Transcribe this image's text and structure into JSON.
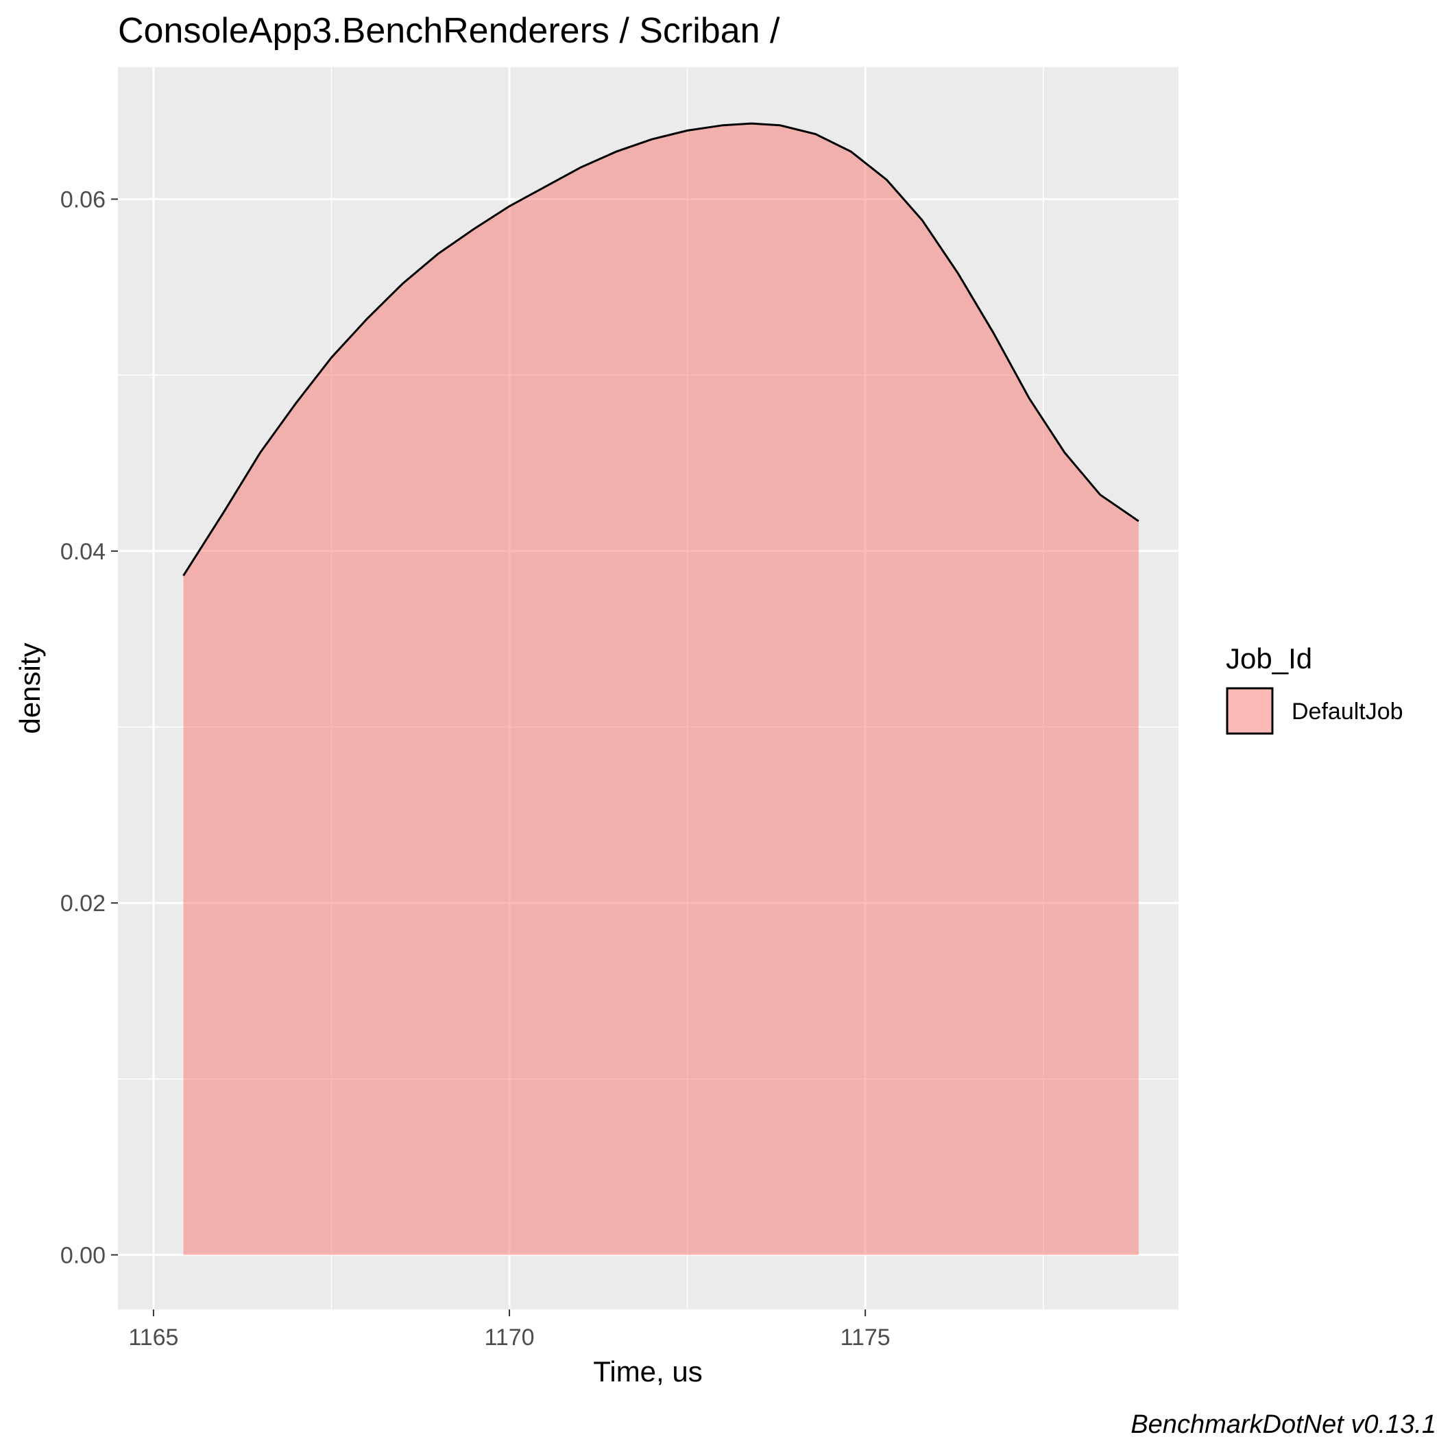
{
  "chart_data": {
    "type": "area",
    "title": "ConsoleApp3.BenchRenderers / Scriban /",
    "xlabel": "Time, us",
    "ylabel": "density",
    "caption": "BenchmarkDotNet v0.13.1",
    "xlim": [
      1164.5,
      1179.4
    ],
    "ylim": [
      -0.0031,
      0.0675
    ],
    "x_ticks": [
      1165,
      1170,
      1175
    ],
    "x_tick_labels": [
      "1165",
      "1170",
      "1175"
    ],
    "x_minor_ticks": [
      1167.5,
      1172.5,
      1177.5
    ],
    "y_ticks": [
      0.0,
      0.02,
      0.04,
      0.06
    ],
    "y_tick_labels": [
      "0.00",
      "0.02",
      "0.04",
      "0.06"
    ],
    "y_minor_ticks": [
      0.01,
      0.03,
      0.05
    ],
    "grid": true,
    "panel_background": "#ebebeb",
    "legend": {
      "title": "Job_Id",
      "position": "right",
      "entries": [
        {
          "label": "DefaultJob",
          "color": "#f8766d"
        }
      ]
    },
    "series": [
      {
        "name": "DefaultJob",
        "fill": "#f8766d",
        "fill_opacity": 0.5,
        "stroke": "#000000",
        "x": [
          1165.42,
          1166.0,
          1166.5,
          1167.0,
          1167.5,
          1168.0,
          1168.5,
          1169.0,
          1169.5,
          1170.0,
          1170.5,
          1171.0,
          1171.5,
          1172.0,
          1172.5,
          1173.0,
          1173.4,
          1173.8,
          1174.3,
          1174.8,
          1175.3,
          1175.8,
          1176.3,
          1176.8,
          1177.3,
          1177.8,
          1178.3,
          1178.84
        ],
        "y": [
          0.0386,
          0.0423,
          0.0456,
          0.0484,
          0.051,
          0.0532,
          0.0552,
          0.0569,
          0.0583,
          0.0596,
          0.0607,
          0.0618,
          0.0627,
          0.0634,
          0.0639,
          0.0642,
          0.0643,
          0.0642,
          0.0637,
          0.0627,
          0.0611,
          0.0588,
          0.0558,
          0.0524,
          0.0487,
          0.0456,
          0.0432,
          0.0417
        ]
      }
    ]
  }
}
